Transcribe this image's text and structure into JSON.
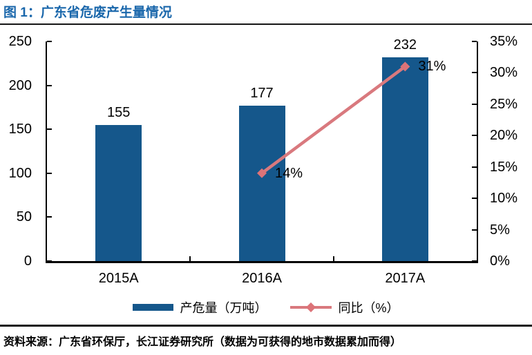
{
  "title": "图 1：广东省危废产生量情况",
  "source_note": "资料来源：广东省环保厅，长江证券研究所（数据为可获得的地市数据累加而得）",
  "colors": {
    "title": "#1a67ab",
    "bar": "#15578b",
    "line": "#d9797e",
    "marker": "#dc7378",
    "axis": "#000000",
    "rule": "#151515"
  },
  "chart_data": {
    "type": "bar",
    "subtype": "bar+line combo with dual y-axes",
    "title": "图 1：广东省危废产生量情况",
    "categories": [
      "2015A",
      "2016A",
      "2017A"
    ],
    "series": [
      {
        "name": "产危量（万吨）",
        "type": "bar",
        "axis": "left",
        "values": [
          155,
          177,
          232
        ],
        "point_labels": [
          "155",
          "177",
          "232"
        ]
      },
      {
        "name": "同比（%）",
        "type": "line",
        "axis": "right",
        "values": [
          null,
          14,
          31
        ],
        "point_labels": [
          null,
          "14%",
          "31%"
        ]
      }
    ],
    "left_axis": {
      "min": 0,
      "max": 250,
      "tick_labels": [
        "250",
        "200",
        "150",
        "100",
        "50",
        "0"
      ]
    },
    "right_axis": {
      "min": 0,
      "max": 35,
      "tick_labels": [
        "35%",
        "30%",
        "25%",
        "20%",
        "15%",
        "10%",
        "5%",
        "0%"
      ]
    },
    "legend": {
      "position": "bottom",
      "entries": [
        "产危量（万吨）",
        "同比（%）"
      ]
    },
    "grid": false
  }
}
